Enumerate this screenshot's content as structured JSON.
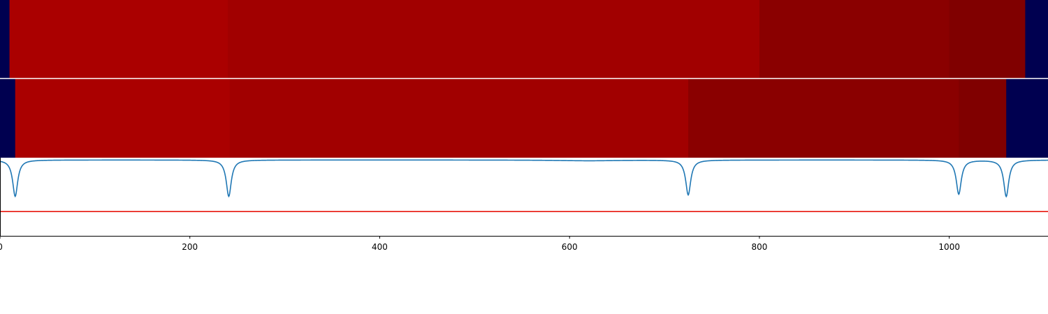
{
  "chart_data": [
    {
      "type": "heatmap",
      "xlim": [
        0,
        1104
      ],
      "segments": [
        {
          "start": 0,
          "end": 10,
          "color": "#000050"
        },
        {
          "start": 10,
          "end": 240,
          "color": "#aa0000"
        },
        {
          "start": 240,
          "end": 800,
          "color": "#a10000"
        },
        {
          "start": 800,
          "end": 1000,
          "color": "#8a0000"
        },
        {
          "start": 1000,
          "end": 1080,
          "color": "#800000"
        },
        {
          "start": 1080,
          "end": 1104,
          "color": "#000050"
        }
      ]
    },
    {
      "type": "heatmap",
      "xlim": [
        0,
        1104
      ],
      "segments": [
        {
          "start": 0,
          "end": 16,
          "color": "#000050"
        },
        {
          "start": 16,
          "end": 242,
          "color": "#aa0000"
        },
        {
          "start": 242,
          "end": 725,
          "color": "#a10000"
        },
        {
          "start": 725,
          "end": 1010,
          "color": "#8a0000"
        },
        {
          "start": 1010,
          "end": 1060,
          "color": "#800000"
        },
        {
          "start": 1060,
          "end": 1104,
          "color": "#000050"
        }
      ]
    },
    {
      "type": "line",
      "xlim": [
        0,
        1104
      ],
      "ylim": [
        -1.0,
        0.03
      ],
      "x_ticks": [
        0,
        200,
        400,
        600,
        800,
        1000
      ],
      "baseline": 0,
      "dips": [
        {
          "x": 16,
          "depth": -0.48
        },
        {
          "x": 241,
          "depth": -0.48
        },
        {
          "x": 620,
          "depth": -0.01
        },
        {
          "x": 725,
          "depth": -0.46
        },
        {
          "x": 1010,
          "depth": -0.45
        },
        {
          "x": 1060,
          "depth": -0.48
        }
      ],
      "threshold": -0.68,
      "line_color": "#1f77b4",
      "threshold_color": "#e8160c"
    }
  ],
  "axis": {
    "tick_labels": [
      "0",
      "200",
      "400",
      "600",
      "800",
      "1000"
    ]
  }
}
